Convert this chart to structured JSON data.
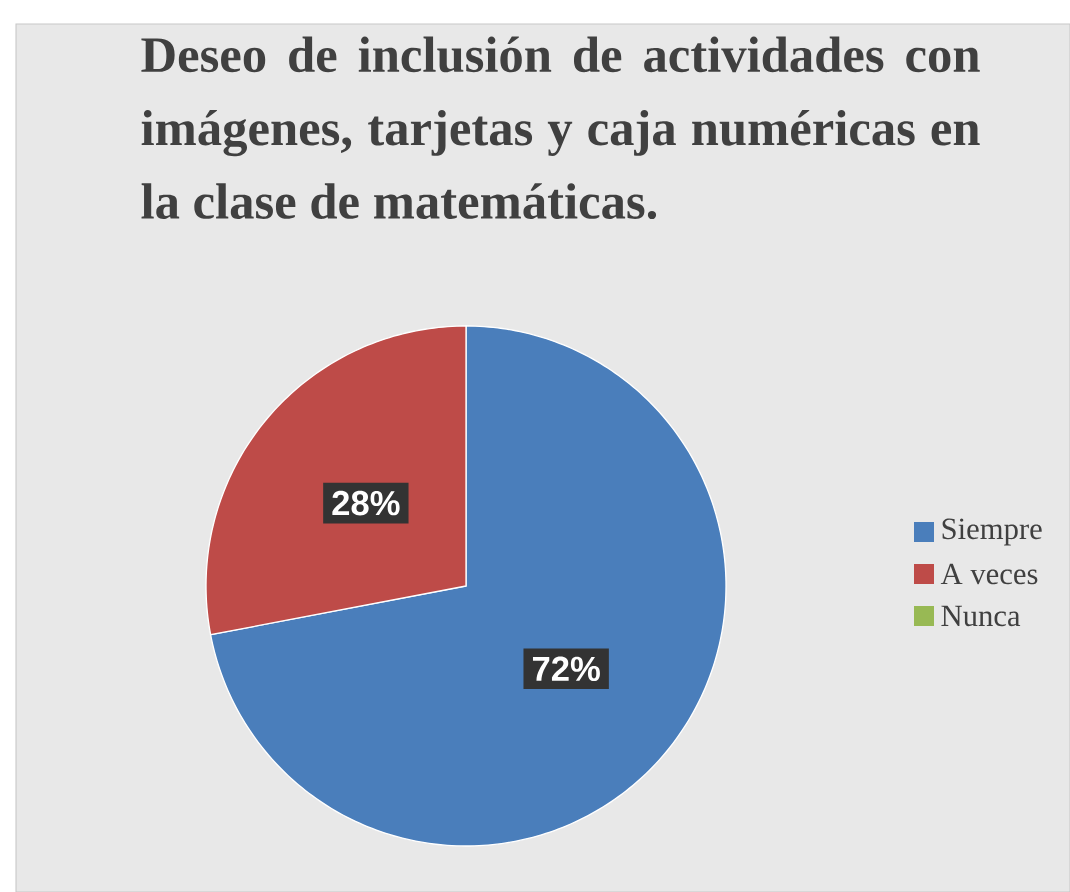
{
  "chart_data": {
    "type": "pie",
    "title": "Deseo de inclusión de actividades con imágenes, tarjetas y caja numéricas en la clase de matemáticas.",
    "categories": [
      "Siempre",
      "A veces",
      "Nunca"
    ],
    "values": [
      72,
      28,
      0
    ],
    "colors": [
      "#4a7ebb",
      "#be4b48",
      "#98b954"
    ],
    "value_labels": [
      "72%",
      "28%",
      null
    ],
    "legend": "right"
  }
}
